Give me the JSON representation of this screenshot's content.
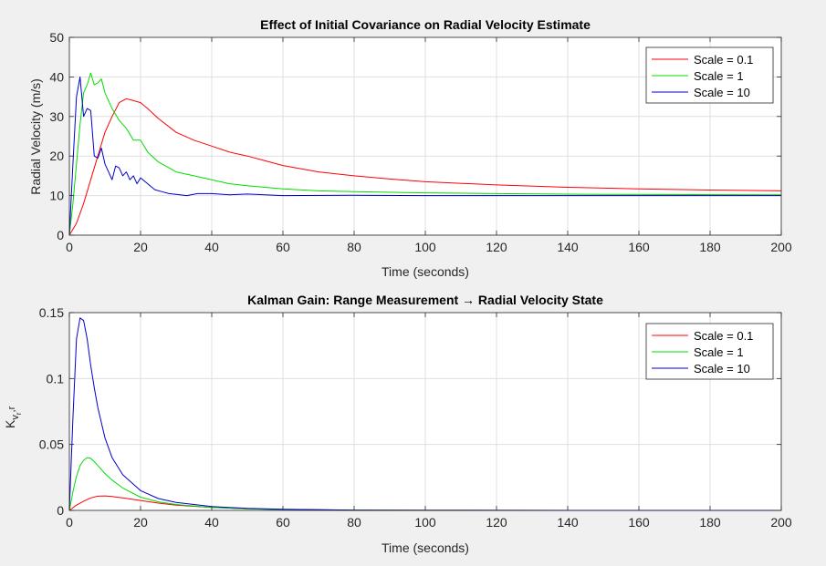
{
  "chart_data": [
    {
      "type": "line",
      "title": "Effect of Initial Covariance on Radial Velocity Estimate",
      "xlabel": "Time (seconds)",
      "ylabel": "Radial Velocity (m/s)",
      "xlim": [
        0,
        200
      ],
      "ylim": [
        0,
        50
      ],
      "xticks": [
        "0",
        "20",
        "40",
        "60",
        "80",
        "100",
        "120",
        "140",
        "160",
        "180",
        "200"
      ],
      "yticks": [
        "0",
        "10",
        "20",
        "30",
        "40",
        "50"
      ],
      "grid": true,
      "legend_position": "top-right",
      "series": [
        {
          "name": "Scale = 0.1",
          "color": "#ff0000",
          "x": [
            0,
            2,
            4,
            6,
            8,
            10,
            12,
            14,
            16,
            18,
            20,
            22,
            25,
            30,
            35,
            40,
            45,
            50,
            55,
            60,
            70,
            80,
            90,
            100,
            120,
            140,
            160,
            180,
            200
          ],
          "y": [
            0,
            3,
            8,
            14,
            20,
            26,
            30,
            33.5,
            34.5,
            34,
            33.5,
            32,
            29.5,
            26,
            24,
            22.5,
            21,
            20,
            18.8,
            17.6,
            16,
            15,
            14.2,
            13.5,
            12.7,
            12.1,
            11.7,
            11.4,
            11.2
          ]
        },
        {
          "name": "Scale = 1",
          "color": "#00dd00",
          "x": [
            0,
            1,
            2,
            3,
            4,
            5,
            6,
            7,
            8,
            9,
            10,
            12,
            14,
            16,
            18,
            20,
            22,
            25,
            28,
            30,
            35,
            40,
            45,
            50,
            60,
            70,
            80,
            100,
            120,
            150,
            200
          ],
          "y": [
            0,
            8,
            18,
            28,
            36,
            38,
            41,
            38,
            38.5,
            39.5,
            36,
            32,
            29,
            27,
            24,
            24,
            21,
            18.5,
            17,
            16,
            15,
            14,
            13,
            12.5,
            11.7,
            11.2,
            11,
            10.7,
            10.5,
            10.3,
            10.2
          ]
        },
        {
          "name": "Scale = 10",
          "color": "#0000cc",
          "x": [
            0,
            1,
            2,
            3,
            4,
            5,
            6,
            7,
            8,
            9,
            10,
            11,
            12,
            13,
            14,
            15,
            16,
            17,
            18,
            19,
            20,
            22,
            24,
            26,
            28,
            30,
            33,
            36,
            40,
            45,
            50,
            60,
            80,
            100,
            150,
            200
          ],
          "y": [
            0,
            18,
            35,
            40,
            30,
            32,
            31.5,
            20,
            19.5,
            22,
            18,
            16,
            14,
            17.5,
            17,
            15,
            16,
            14,
            15,
            13,
            14.5,
            13,
            11.5,
            11,
            10.5,
            10.3,
            10,
            10.5,
            10.5,
            10.2,
            10.4,
            10,
            10.1,
            10,
            10,
            10
          ]
        }
      ]
    },
    {
      "type": "line",
      "title": "Kalman Gain: Range Measurement → Radial Velocity State",
      "xlabel": "Time (seconds)",
      "ylabel": "K",
      "ylabel_sub": "v",
      "ylabel_subsub": "r",
      "ylabel_tail": ",r",
      "xlim": [
        0,
        200
      ],
      "ylim": [
        0,
        0.15
      ],
      "xticks": [
        "0",
        "20",
        "40",
        "60",
        "80",
        "100",
        "120",
        "140",
        "160",
        "180",
        "200"
      ],
      "yticks": [
        "0",
        "0.05",
        "0.1",
        "0.15"
      ],
      "grid": true,
      "legend_position": "top-right",
      "series": [
        {
          "name": "Scale = 0.1",
          "color": "#ff0000",
          "x": [
            0,
            2,
            4,
            6,
            8,
            10,
            12,
            15,
            20,
            25,
            30,
            40,
            50,
            60,
            80,
            100,
            150,
            200
          ],
          "y": [
            0,
            0.004,
            0.007,
            0.0095,
            0.0108,
            0.011,
            0.0105,
            0.0095,
            0.0075,
            0.0055,
            0.004,
            0.0022,
            0.0012,
            0.0007,
            0.0002,
            0.0001,
            0,
            0
          ]
        },
        {
          "name": "Scale = 1",
          "color": "#00dd00",
          "x": [
            0,
            1,
            2,
            3,
            4,
            5,
            6,
            7,
            8,
            10,
            12,
            15,
            20,
            25,
            30,
            40,
            50,
            60,
            80,
            100,
            150,
            200
          ],
          "y": [
            0,
            0.014,
            0.026,
            0.034,
            0.038,
            0.04,
            0.0395,
            0.037,
            0.034,
            0.028,
            0.023,
            0.017,
            0.01,
            0.0065,
            0.0045,
            0.0022,
            0.0012,
            0.0006,
            0.0002,
            0.0001,
            0,
            0
          ]
        },
        {
          "name": "Scale = 10",
          "color": "#0000cc",
          "x": [
            0,
            1,
            2,
            3,
            4,
            5,
            6,
            7,
            8,
            10,
            12,
            15,
            20,
            25,
            30,
            40,
            50,
            60,
            80,
            100,
            150,
            200
          ],
          "y": [
            0,
            0.07,
            0.13,
            0.146,
            0.144,
            0.13,
            0.11,
            0.093,
            0.078,
            0.055,
            0.04,
            0.027,
            0.015,
            0.009,
            0.006,
            0.003,
            0.0015,
            0.0008,
            0.0002,
            0.0001,
            0,
            0
          ]
        }
      ]
    }
  ]
}
